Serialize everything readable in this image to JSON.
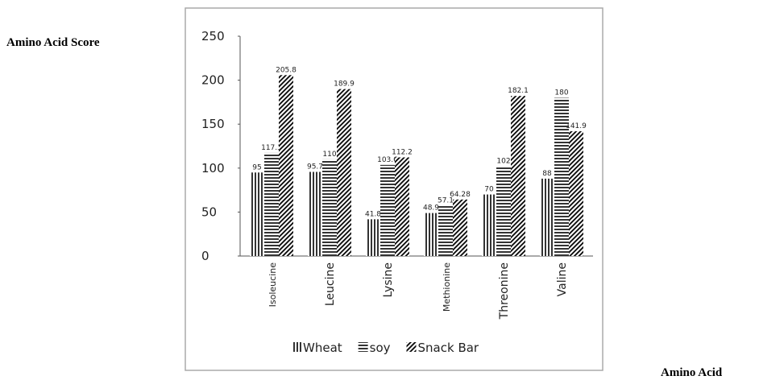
{
  "chart_data": {
    "type": "bar",
    "ylabel": "Amino Acid Score",
    "xlabel": "Amino Acid",
    "categories": [
      "Isoleucine",
      "Leucine",
      "Lysine",
      "Methionine",
      "Threonine",
      "Valine"
    ],
    "series": [
      {
        "name": "Wheat",
        "color": "#000000",
        "pattern": "vertical",
        "values": [
          95,
          95.7,
          41.8,
          48.9,
          70,
          88
        ]
      },
      {
        "name": "soy",
        "color": "#000000",
        "pattern": "horizontal",
        "values": [
          117.3,
          110,
          103.6,
          57.1,
          102,
          180
        ]
      },
      {
        "name": "Snack Bar",
        "color": "#000000",
        "pattern": "diagonal",
        "values": [
          205.8,
          189.9,
          112.2,
          64.28,
          182.1,
          141.9
        ]
      }
    ],
    "ylim": [
      0,
      250
    ],
    "yticks": [
      0,
      50,
      100,
      150,
      200,
      250
    ],
    "grid": false,
    "legend": "bottom"
  }
}
